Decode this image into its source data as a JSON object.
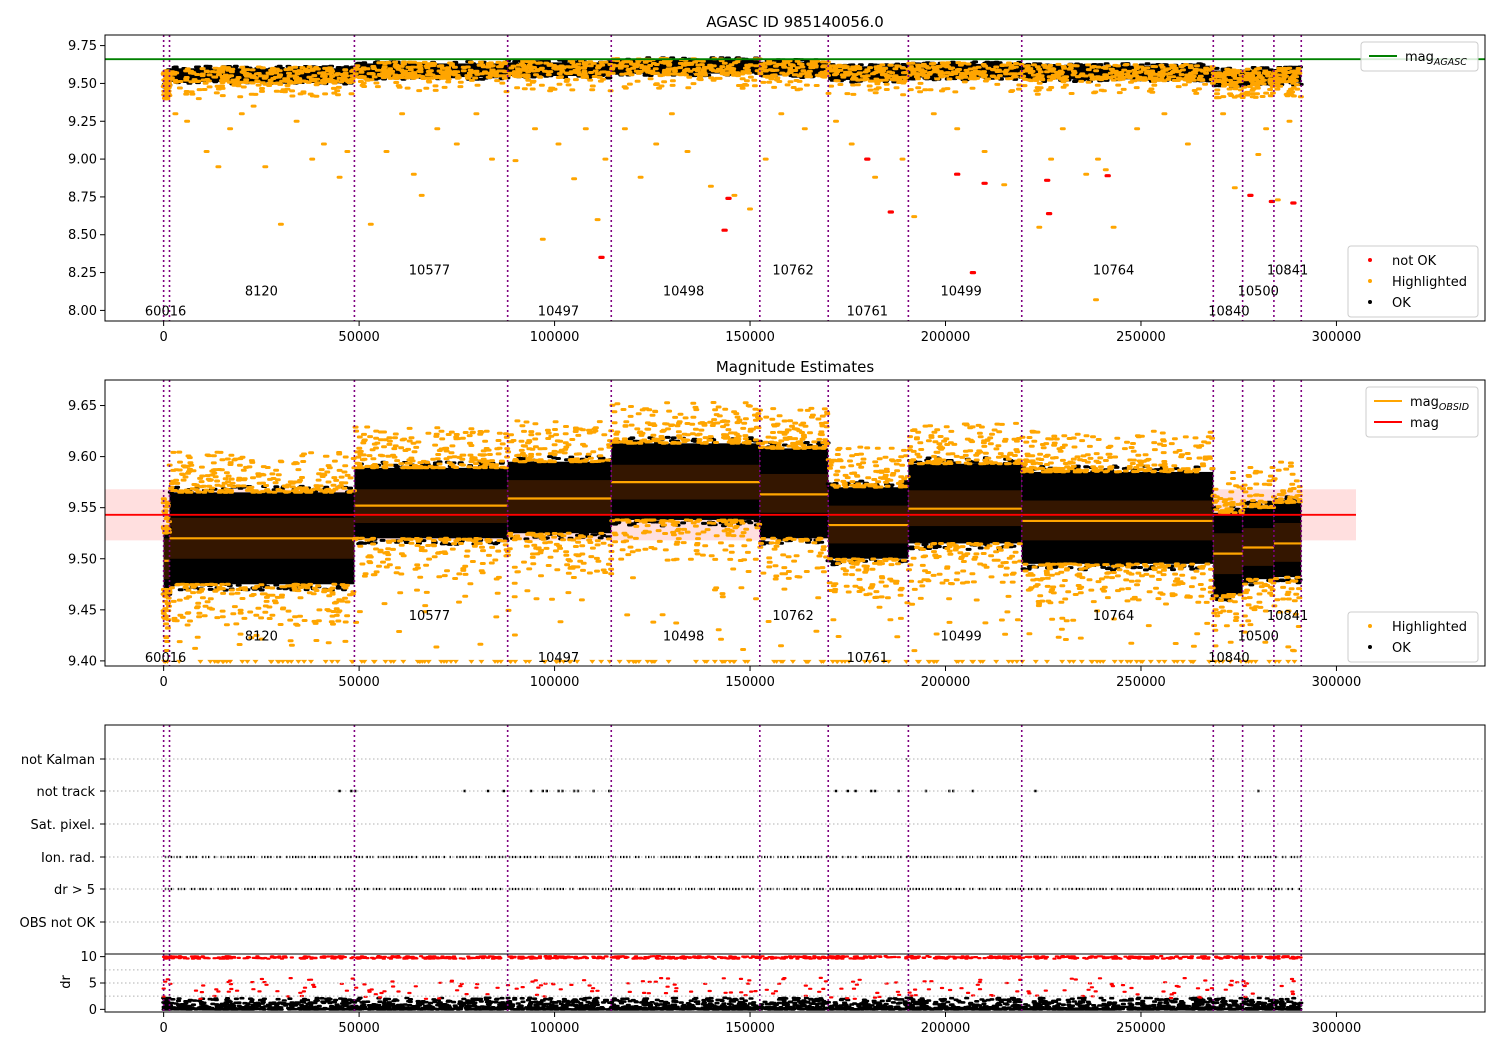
{
  "chart_data": [
    {
      "id": "agasc",
      "type": "scatter",
      "title": "AGASC ID 985140056.0",
      "xlabel": "",
      "ylabel": "",
      "xlim": [
        -15000,
        338000
      ],
      "ylim": [
        7.93,
        9.82
      ],
      "x_ticks": [
        0,
        50000,
        100000,
        150000,
        200000,
        250000,
        300000
      ],
      "x_tick_labels": [
        "0",
        "50000",
        "100000",
        "150000",
        "200000",
        "250000",
        "300000"
      ],
      "y_ticks": [
        8.0,
        8.25,
        8.5,
        8.75,
        9.0,
        9.25,
        9.5,
        9.75
      ],
      "y_tick_labels": [
        "8.00",
        "8.25",
        "8.50",
        "8.75",
        "9.00",
        "9.25",
        "9.50",
        "9.75"
      ],
      "mag_agasc": 9.66,
      "legends": [
        {
          "position": "top-right",
          "entries": [
            {
              "label": "mag",
              "sub": "AGASC",
              "kind": "line",
              "color": "#008000"
            }
          ]
        },
        {
          "position": "bottom-right",
          "entries": [
            {
              "label": "not OK",
              "kind": "dot",
              "color": "#ff0000"
            },
            {
              "label": "Highlighted",
              "kind": "dot",
              "color": "#ffa500"
            },
            {
              "label": "OK",
              "kind": "dot",
              "color": "#000000"
            }
          ]
        }
      ],
      "obsid_labels": [
        {
          "text": "60016",
          "x": 500,
          "y": 8.0
        },
        {
          "text": "8120",
          "x": 25000,
          "y": 8.13
        },
        {
          "text": "10577",
          "x": 68000,
          "y": 8.27
        },
        {
          "text": "10497",
          "x": 101000,
          "y": 8.0
        },
        {
          "text": "10498",
          "x": 133000,
          "y": 8.13
        },
        {
          "text": "10762",
          "x": 161000,
          "y": 8.27
        },
        {
          "text": "10761",
          "x": 180000,
          "y": 8.0
        },
        {
          "text": "10499",
          "x": 204000,
          "y": 8.13
        },
        {
          "text": "10764",
          "x": 243000,
          "y": 8.27
        },
        {
          "text": "10840",
          "x": 272500,
          "y": 8.0
        },
        {
          "text": "10500",
          "x": 280000,
          "y": 8.13
        },
        {
          "text": "10841",
          "x": 287500,
          "y": 8.27
        }
      ],
      "outliers_highlighted": [
        [
          3000,
          9.3
        ],
        [
          6000,
          9.25
        ],
        [
          9000,
          9.4
        ],
        [
          11000,
          9.05
        ],
        [
          14000,
          8.95
        ],
        [
          17000,
          9.2
        ],
        [
          20000,
          9.3
        ],
        [
          23000,
          9.35
        ],
        [
          26000,
          8.95
        ],
        [
          30000,
          8.57
        ],
        [
          34000,
          9.25
        ],
        [
          38000,
          9.0
        ],
        [
          41000,
          9.1
        ],
        [
          45000,
          8.88
        ],
        [
          47000,
          9.05
        ],
        [
          53000,
          8.57
        ],
        [
          57000,
          9.05
        ],
        [
          61000,
          9.3
        ],
        [
          64000,
          8.9
        ],
        [
          66000,
          8.76
        ],
        [
          70000,
          9.2
        ],
        [
          75000,
          9.1
        ],
        [
          80000,
          9.3
        ],
        [
          84000,
          9.0
        ],
        [
          90000,
          8.99
        ],
        [
          95000,
          9.2
        ],
        [
          97000,
          8.47
        ],
        [
          101000,
          9.1
        ],
        [
          105000,
          8.87
        ],
        [
          108000,
          9.2
        ],
        [
          111000,
          8.6
        ],
        [
          113000,
          9.0
        ],
        [
          118000,
          9.2
        ],
        [
          122000,
          8.88
        ],
        [
          126000,
          9.1
        ],
        [
          130000,
          9.3
        ],
        [
          134000,
          9.05
        ],
        [
          140000,
          8.82
        ],
        [
          146000,
          8.76
        ],
        [
          150000,
          8.67
        ],
        [
          154000,
          9.0
        ],
        [
          158000,
          9.3
        ],
        [
          164000,
          9.2
        ],
        [
          172000,
          9.25
        ],
        [
          176000,
          9.1
        ],
        [
          182000,
          8.88
        ],
        [
          189000,
          9.0
        ],
        [
          192000,
          8.62
        ],
        [
          197000,
          9.3
        ],
        [
          203000,
          9.2
        ],
        [
          210000,
          9.05
        ],
        [
          215000,
          8.83
        ],
        [
          224000,
          8.55
        ],
        [
          227000,
          9.0
        ],
        [
          230000,
          9.2
        ],
        [
          236000,
          8.9
        ],
        [
          239000,
          9.0
        ],
        [
          241000,
          8.93
        ],
        [
          243000,
          8.55
        ],
        [
          238500,
          8.07
        ],
        [
          249000,
          9.2
        ],
        [
          256000,
          9.3
        ],
        [
          262000,
          9.1
        ],
        [
          271000,
          9.3
        ],
        [
          274000,
          8.81
        ],
        [
          280000,
          9.03
        ],
        [
          282000,
          9.2
        ],
        [
          285000,
          8.73
        ],
        [
          288000,
          9.25
        ]
      ],
      "outliers_not_ok": [
        [
          112000,
          8.35
        ],
        [
          143500,
          8.53
        ],
        [
          144500,
          8.74
        ],
        [
          180000,
          9.0
        ],
        [
          186000,
          8.65
        ],
        [
          203000,
          8.9
        ],
        [
          207000,
          8.25
        ],
        [
          210000,
          8.84
        ],
        [
          226000,
          8.86
        ],
        [
          226500,
          8.64
        ],
        [
          241500,
          8.89
        ],
        [
          278000,
          8.76
        ],
        [
          283500,
          8.72
        ],
        [
          289000,
          8.71
        ]
      ]
    },
    {
      "id": "estimates",
      "type": "scatter",
      "title": "Magnitude Estimates",
      "xlabel": "",
      "ylabel": "",
      "xlim": [
        -15000,
        338000
      ],
      "ylim": [
        9.395,
        9.675
      ],
      "x_ticks": [
        0,
        50000,
        100000,
        150000,
        200000,
        250000,
        300000
      ],
      "x_tick_labels": [
        "0",
        "50000",
        "100000",
        "150000",
        "200000",
        "250000",
        "300000"
      ],
      "y_ticks": [
        9.4,
        9.45,
        9.5,
        9.55,
        9.6,
        9.65
      ],
      "y_tick_labels": [
        "9.40",
        "9.45",
        "9.50",
        "9.55",
        "9.60",
        "9.65"
      ],
      "mag_mean": 9.543,
      "mag_band": [
        9.518,
        9.568
      ],
      "legends": [
        {
          "position": "top-right",
          "entries": [
            {
              "label": "mag",
              "sub": "OBSID",
              "kind": "line",
              "color": "#ffa500"
            },
            {
              "label": "mag",
              "kind": "line",
              "color": "#ff0000"
            }
          ]
        },
        {
          "position": "bottom-right",
          "entries": [
            {
              "label": "Highlighted",
              "kind": "dot",
              "color": "#ffa500"
            },
            {
              "label": "OK",
              "kind": "dot",
              "color": "#000000"
            }
          ]
        }
      ],
      "obsid_labels": [
        {
          "text": "60016",
          "x": 500,
          "y": 9.404
        },
        {
          "text": "8120",
          "x": 25000,
          "y": 9.425
        },
        {
          "text": "10577",
          "x": 68000,
          "y": 9.445
        },
        {
          "text": "10497",
          "x": 101000,
          "y": 9.404
        },
        {
          "text": "10498",
          "x": 133000,
          "y": 9.425
        },
        {
          "text": "10762",
          "x": 161000,
          "y": 9.445
        },
        {
          "text": "10761",
          "x": 180000,
          "y": 9.404
        },
        {
          "text": "10499",
          "x": 204000,
          "y": 9.425
        },
        {
          "text": "10764",
          "x": 243000,
          "y": 9.445
        },
        {
          "text": "10840",
          "x": 272500,
          "y": 9.404
        },
        {
          "text": "10500",
          "x": 280000,
          "y": 9.425
        },
        {
          "text": "10841",
          "x": 287500,
          "y": 9.445
        }
      ]
    },
    {
      "id": "flags",
      "type": "scatter",
      "xlabel": "",
      "ylabel": "",
      "xlim": [
        -15000,
        338000
      ],
      "categories": [
        "not Kalman",
        "not track",
        "Sat. pixel.",
        "Ion. rad.",
        "dr > 5",
        "OBS not OK"
      ],
      "not_track_x": [
        45000,
        48000,
        49000,
        77000,
        83000,
        87000,
        94000,
        97000,
        98000,
        101000,
        102000,
        105000,
        106000,
        110000,
        114000,
        172000,
        175000,
        177000,
        181000,
        182000,
        188000,
        195000,
        201000,
        202000,
        207000,
        223000,
        280000
      ],
      "not_kalman_x": [
        190000,
        268000
      ]
    },
    {
      "id": "dr",
      "type": "scatter",
      "xlabel": "",
      "ylabel": "dr",
      "xlim": [
        -15000,
        338000
      ],
      "ylim": [
        -0.5,
        10.5
      ],
      "x_ticks": [
        0,
        50000,
        100000,
        150000,
        200000,
        250000,
        300000
      ],
      "x_tick_labels": [
        "0",
        "50000",
        "100000",
        "150000",
        "200000",
        "250000",
        "300000"
      ],
      "y_ticks": [
        0,
        5,
        10
      ],
      "y_tick_labels": [
        "0",
        "5",
        "10"
      ]
    }
  ],
  "obsids": [
    {
      "obsid": "60016",
      "x0": 0,
      "x1": 1500,
      "mag": 9.498,
      "lo": 9.47,
      "hi": 9.525,
      "band": [
        9.48,
        9.52
      ]
    },
    {
      "obsid": "8120",
      "x0": 1500,
      "x1": 48800,
      "mag": 9.52,
      "lo": 9.475,
      "hi": 9.565,
      "band": [
        9.5,
        9.54
      ]
    },
    {
      "obsid": "10577",
      "x0": 48800,
      "x1": 88000,
      "mag": 9.552,
      "lo": 9.52,
      "hi": 9.589,
      "band": [
        9.535,
        9.568
      ]
    },
    {
      "obsid": "10497",
      "x0": 88000,
      "x1": 114500,
      "mag": 9.559,
      "lo": 9.525,
      "hi": 9.595,
      "band": [
        9.543,
        9.577
      ]
    },
    {
      "obsid": "10498",
      "x0": 114500,
      "x1": 152500,
      "mag": 9.575,
      "lo": 9.538,
      "hi": 9.613,
      "band": [
        9.558,
        9.592
      ]
    },
    {
      "obsid": "10762",
      "x0": 152500,
      "x1": 170000,
      "mag": 9.563,
      "lo": 9.52,
      "hi": 9.608,
      "band": [
        9.545,
        9.583
      ]
    },
    {
      "obsid": "10761",
      "x0": 170000,
      "x1": 190500,
      "mag": 9.533,
      "lo": 9.5,
      "hi": 9.57,
      "band": [
        9.515,
        9.552
      ]
    },
    {
      "obsid": "10499",
      "x0": 190500,
      "x1": 219500,
      "mag": 9.549,
      "lo": 9.515,
      "hi": 9.593,
      "band": [
        9.532,
        9.567
      ]
    },
    {
      "obsid": "10764",
      "x0": 219500,
      "x1": 268500,
      "mag": 9.537,
      "lo": 9.495,
      "hi": 9.585,
      "band": [
        9.518,
        9.557
      ]
    },
    {
      "obsid": "10840",
      "x0": 268500,
      "x1": 276000,
      "mag": 9.505,
      "lo": 9.465,
      "hi": 9.545,
      "band": [
        9.485,
        9.525
      ]
    },
    {
      "obsid": "10500",
      "x0": 276000,
      "x1": 284000,
      "mag": 9.511,
      "lo": 9.48,
      "hi": 9.55,
      "band": [
        9.493,
        9.53
      ]
    },
    {
      "obsid": "10841",
      "x0": 284000,
      "x1": 291000,
      "mag": 9.515,
      "lo": 9.482,
      "hi": 9.555,
      "band": [
        9.497,
        9.535
      ]
    }
  ],
  "obsid_boundaries": [
    0,
    1500,
    48800,
    88000,
    114500,
    152500,
    170000,
    190500,
    219500,
    268500,
    276000,
    284000,
    291000
  ],
  "colors": {
    "ok": "#000000",
    "highlighted": "#ffa500",
    "not_ok": "#ff0000",
    "agasc_line": "#008000",
    "mag_line": "#ff0000",
    "obsid_line": "#ffa500",
    "boundary": "#800080",
    "band_fill": "#ffc0c0"
  }
}
